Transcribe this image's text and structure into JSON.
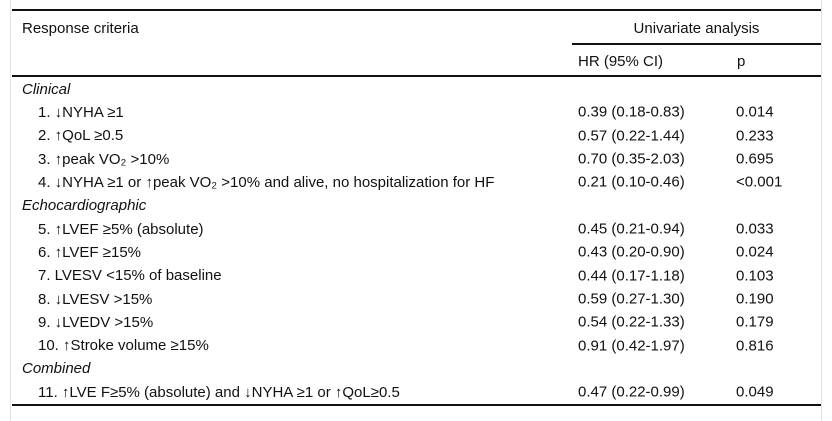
{
  "table": {
    "columns": {
      "criteria": "Response criteria",
      "group": "Univariate analysis",
      "hr": "HR (95% CI)",
      "p": "p"
    },
    "sections": [
      {
        "name": "Clinical",
        "rows": [
          {
            "label": "1. ↓NYHA ≥1",
            "hr": "0.39 (0.18-0.83)",
            "p": "0.014"
          },
          {
            "label": "2. ↑QoL ≥0.5",
            "hr": "0.57 (0.22-1.44)",
            "p": "0.233"
          },
          {
            "label": "3. ↑peak VO₂ >10%",
            "hr": "0.70 (0.35-2.03)",
            "p": "0.695"
          },
          {
            "label": "4. ↓NYHA ≥1 or ↑peak VO₂ >10% and alive, no hospitalization for HF",
            "hr": "0.21 (0.10-0.46)",
            "p": "<0.001"
          }
        ]
      },
      {
        "name": "Echocardiographic",
        "rows": [
          {
            "label": "5. ↑LVEF ≥5% (absolute)",
            "hr": "0.45 (0.21-0.94)",
            "p": "0.033"
          },
          {
            "label": "6. ↑LVEF ≥15%",
            "hr": "0.43 (0.20-0.90)",
            "p": "0.024"
          },
          {
            "label": "7. LVESV <15% of baseline",
            "hr": "0.44 (0.17-1.18)",
            "p": "0.103"
          },
          {
            "label": "8. ↓LVESV >15%",
            "hr": "0.59 (0.27-1.30)",
            "p": "0.190"
          },
          {
            "label": "9. ↓LVEDV >15%",
            "hr": "0.54 (0.22-1.33)",
            "p": "0.179"
          },
          {
            "label": "10. ↑Stroke volume ≥15%",
            "hr": "0.91 (0.42-1.97)",
            "p": "0.816"
          }
        ]
      },
      {
        "name": "Combined",
        "rows": [
          {
            "label": "11. ↑LVE F≥5% (absolute) and ↓NYHA ≥1 or ↑QoL≥0.5",
            "hr": "0.47 (0.22-0.99)",
            "p": "0.049"
          }
        ]
      }
    ]
  },
  "colors": {
    "text": "#111111",
    "rule": "#111111",
    "page_edge": "#e4e4e4",
    "background": "#ffffff"
  }
}
